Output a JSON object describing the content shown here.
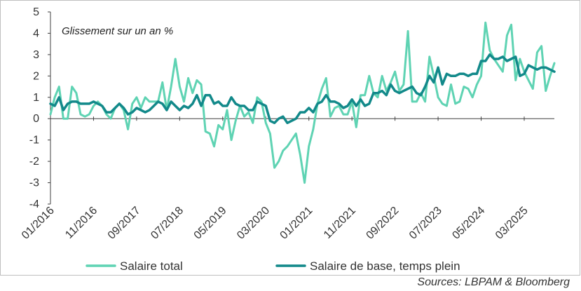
{
  "chart_data": {
    "type": "line",
    "annotation": "Glissement sur un an %",
    "source": "Sources: LBPAM & Bloomberg",
    "xlabel": "",
    "ylabel": "",
    "ylim": [
      -4,
      5
    ],
    "y_ticks": [
      5,
      4,
      3,
      2,
      1,
      0,
      -1,
      -2,
      -3,
      -4
    ],
    "x_ticks": [
      "01/2016",
      "11/2016",
      "09/2017",
      "07/2018",
      "05/2019",
      "03/2020",
      "01/2021",
      "11/2021",
      "09/2022",
      "07/2023",
      "05/2024",
      "03/2025"
    ],
    "grid": false,
    "legend_position": "bottom",
    "series": [
      {
        "name": "Salaire total",
        "color": "#5fd3b3",
        "values": [
          0.2,
          1.0,
          1.5,
          0.0,
          0.0,
          1.5,
          1.2,
          0.2,
          0.1,
          0.2,
          0.6,
          0.8,
          0.6,
          0.2,
          0.0,
          0.5,
          0.7,
          0.4,
          -0.5,
          0.7,
          1.0,
          0.5,
          1.0,
          0.8,
          0.8,
          0.8,
          1.7,
          0.4,
          1.5,
          2.8,
          1.5,
          0.8,
          1.9,
          1.2,
          1.8,
          1.6,
          -0.6,
          -0.7,
          -1.3,
          -0.3,
          -0.5,
          0.4,
          -1.0,
          -0.1,
          0.6,
          0.1,
          0.3,
          -0.2,
          1.0,
          0.8,
          -0.2,
          -0.7,
          -2.3,
          -2.0,
          -1.5,
          -1.3,
          -1.0,
          -0.7,
          -1.7,
          -3.0,
          -1.3,
          -0.5,
          0.7,
          1.4,
          1.9,
          0.1,
          0.5,
          0.6,
          0.2,
          0.2,
          0.8,
          -0.4,
          1.1,
          1.1,
          2.0,
          1.2,
          1.0,
          2.0,
          1.3,
          1.7,
          2.2,
          1.3,
          1.6,
          4.1,
          0.8,
          0.8,
          1.2,
          0.8,
          2.9,
          2.0,
          1.0,
          0.7,
          0.6,
          1.6,
          0.7,
          0.8,
          1.5,
          1.4,
          1.0,
          1.6,
          2.0,
          4.5,
          3.2,
          2.8,
          2.5,
          2.2,
          3.9,
          4.4,
          1.8,
          2.8,
          2.2,
          1.8,
          1.4,
          3.1,
          3.4,
          1.3,
          2.0,
          2.6
        ]
      },
      {
        "name": "Salaire de base, temps plein",
        "color": "#12898a",
        "values": [
          0.7,
          0.6,
          1.0,
          0.4,
          0.7,
          0.8,
          0.8,
          0.7,
          0.7,
          0.7,
          0.8,
          0.7,
          0.6,
          0.3,
          0.3,
          0.5,
          0.7,
          0.5,
          0.2,
          0.3,
          0.5,
          0.4,
          0.3,
          0.4,
          0.6,
          0.8,
          0.7,
          0.4,
          0.8,
          0.6,
          0.4,
          0.6,
          0.5,
          0.7,
          1.1,
          0.6,
          1.1,
          1.1,
          0.7,
          0.8,
          0.6,
          0.6,
          1.0,
          0.7,
          0.6,
          0.6,
          0.4,
          0.4,
          0.8,
          0.7,
          0.6,
          -0.1,
          -0.2,
          0.0,
          0.1,
          -0.2,
          -0.1,
          0.0,
          0.3,
          0.3,
          0.5,
          0.3,
          0.7,
          0.8,
          1.1,
          0.8,
          0.8,
          0.7,
          0.5,
          0.6,
          0.9,
          0.6,
          0.9,
          0.6,
          0.7,
          1.2,
          1.2,
          1.3,
          1.1,
          1.6,
          1.3,
          1.2,
          1.3,
          1.4,
          1.5,
          1.2,
          1.1,
          1.5,
          2.0,
          1.7,
          2.4,
          1.6,
          2.1,
          2.0,
          2.0,
          2.1,
          2.1,
          2.0,
          2.1,
          2.1,
          2.7,
          2.7,
          3.0,
          2.8,
          2.8,
          2.9,
          2.7,
          2.8,
          2.9,
          2.0,
          2.1,
          2.5,
          2.4,
          2.3,
          2.4,
          2.4,
          2.3,
          2.2
        ]
      }
    ]
  }
}
